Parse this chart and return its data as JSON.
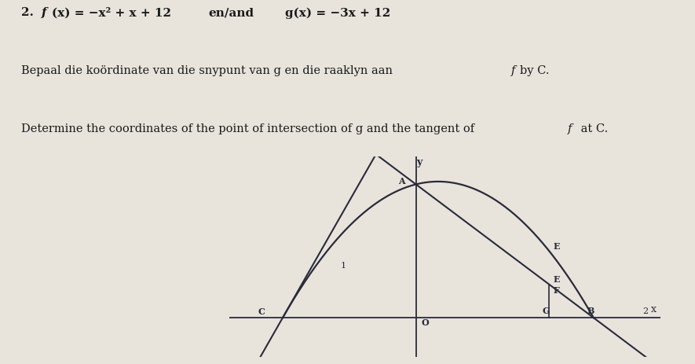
{
  "title_line1": "2. f(x) = -x² + x + 12    en/and    g(x) = -3x + 12",
  "title_line2": "Bepaal die koördinate van die snypunt van g en die raaklyn aan f by C.",
  "title_line3": "Determine the coordinates of the point of intersection of g and the tangent of f at C.",
  "f_coeffs": [
    -1,
    1,
    12
  ],
  "g_coeffs": [
    -3,
    12
  ],
  "tangent_slope": 7,
  "tangent_intercept": 21,
  "x_range": [
    -4.2,
    5.5
  ],
  "y_range": [
    -3.5,
    14.5
  ],
  "background": "#e8e4dc",
  "curve_color": "#2a2a3a",
  "line_color": "#2a2a3a",
  "tangent_color": "#2a2a3a",
  "axis_color": "#2a2a3a",
  "points": {
    "A": [
      0,
      12
    ],
    "B": [
      4,
      0
    ],
    "C": [
      -3,
      0
    ],
    "E": [
      3,
      3
    ],
    "F": [
      3,
      6
    ],
    "G": [
      3,
      0
    ],
    "O": [
      0,
      0
    ]
  },
  "vertical_line_x": 3,
  "parabola_x_start": -3,
  "parabola_x_end": 4,
  "g_x_start": -4.0,
  "g_x_end": 5.2,
  "tangent_x_start": -3.8,
  "tangent_x_end": 0.5
}
